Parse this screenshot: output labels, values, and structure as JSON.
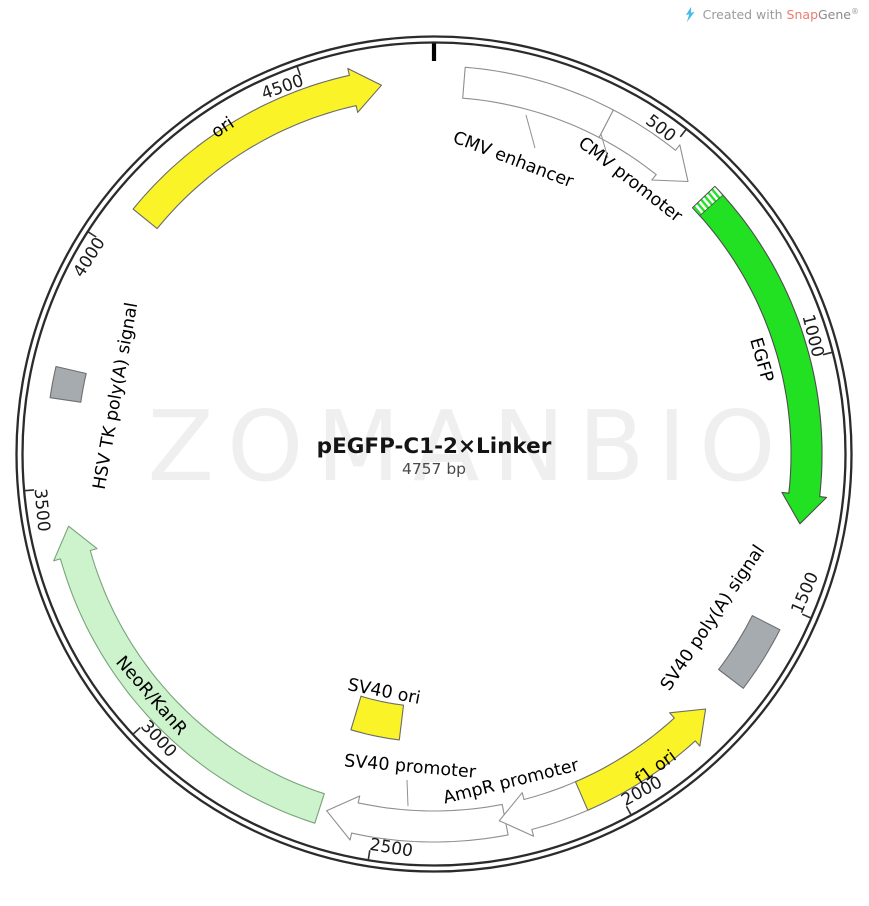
{
  "header": {
    "created_with": "Created with",
    "brand_snap": "Snap",
    "brand_gene": "Gene",
    "registered": "®",
    "logo_icon": "snapgene-wave-icon",
    "brand_snap_color": "#ee7b6e",
    "logo_color": "#45bde6",
    "text_color": "#9b9b9b"
  },
  "plasmid": {
    "name": "pEGFP-C1-2×Linker",
    "size_label": "4757 bp",
    "length_bp": 4757,
    "watermark": "ZOMANBIO",
    "ring_color": "#2b2b2b",
    "tick_interval": 500,
    "ticks": [
      500,
      1000,
      1500,
      2000,
      2500,
      3000,
      3500,
      4000,
      4500
    ],
    "features": [
      {
        "id": "cmv-enhancer",
        "label": "CMV enhancer",
        "start": 61,
        "end": 364,
        "shape": "box",
        "strand": "forward",
        "fill": "#ffffff",
        "stroke": "#8f8f8f"
      },
      {
        "id": "cmv-promoter",
        "label": "CMV promoter",
        "start": 364,
        "end": 568,
        "shape": "arrow",
        "strand": "forward",
        "fill": "#ffffff",
        "stroke": "#8f8f8f"
      },
      {
        "id": "egfp",
        "label": "EGFP",
        "start": 613,
        "end": 1332,
        "shape": "arrow",
        "strand": "forward",
        "fill": "#22e122",
        "stroke": "#4d4d4d",
        "hatch_start": true
      },
      {
        "id": "sv40-polya",
        "label": "SV40 poly(A) signal",
        "start": 1545,
        "end": 1680,
        "shape": "box",
        "strand": "none",
        "fill": "#a6abb0",
        "stroke": "#6e6e6e"
      },
      {
        "id": "sv40-promoter",
        "label": "SV40 promoter",
        "start": 2233,
        "end": 2600,
        "shape": "arrow",
        "strand": "forward",
        "fill": "#ffffff",
        "stroke": "#8f8f8f"
      },
      {
        "id": "ampr-promoter",
        "label": "AmpR promoter",
        "start": 2065,
        "end": 2245,
        "shape": "arrow",
        "strand": "forward",
        "fill": "#ffffff",
        "stroke": "#8f8f8f"
      },
      {
        "id": "f1-ori",
        "label": "f1 ori",
        "start": 1760,
        "end": 2070,
        "shape": "arrow",
        "strand": "reverse",
        "fill": "#f9f327",
        "stroke": "#6b6b6b"
      },
      {
        "id": "sv40-ori",
        "label": "SV40 ori",
        "start": 2470,
        "end": 2600,
        "shape": "box",
        "strand": "none",
        "fill": "#f9f327",
        "stroke": "#6b6b6b"
      },
      {
        "id": "neor-kanr",
        "label": "NeoR/KanR",
        "start": 2615,
        "end": 3420,
        "shape": "arrow",
        "strand": "forward",
        "fill": "#cdf3cd",
        "stroke": "#79a379"
      },
      {
        "id": "hsv-tk-polya",
        "label": "HSV TK poly(A) signal",
        "start": 3678,
        "end": 3740,
        "shape": "box",
        "strand": "none",
        "fill": "#a6abb0",
        "stroke": "#6e6e6e"
      },
      {
        "id": "ori",
        "label": "ori",
        "start": 4085,
        "end": 4650,
        "shape": "arrow",
        "strand": "forward",
        "fill": "#f9f327",
        "stroke": "#6b6b6b"
      }
    ]
  }
}
